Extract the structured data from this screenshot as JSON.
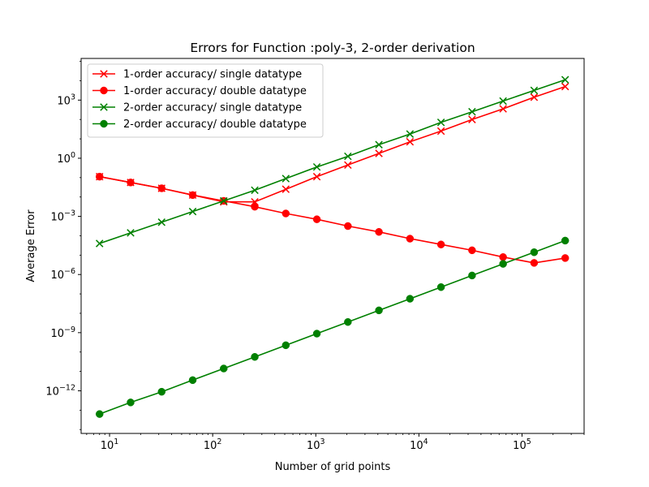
{
  "chart_data": {
    "type": "line",
    "title": "Errors for Function :poly-3, 2-order derivation",
    "xlabel": "Number of grid points",
    "ylabel": "Average Error",
    "xscale": "log",
    "yscale": "log",
    "xlim": [
      5.3,
      400000
    ],
    "ylim_exponent": [
      -14.2,
      5.15
    ],
    "x_ticks": [
      {
        "value": 10,
        "base": "10",
        "exp": "1"
      },
      {
        "value": 100,
        "base": "10",
        "exp": "2"
      },
      {
        "value": 1000,
        "base": "10",
        "exp": "3"
      },
      {
        "value": 10000,
        "base": "10",
        "exp": "4"
      },
      {
        "value": 100000,
        "base": "10",
        "exp": "5"
      }
    ],
    "y_ticks": [
      {
        "exp_value": -12,
        "base": "10",
        "exp": "−12"
      },
      {
        "exp_value": -9,
        "base": "10",
        "exp": "−9"
      },
      {
        "exp_value": -6,
        "base": "10",
        "exp": "−6"
      },
      {
        "exp_value": -3,
        "base": "10",
        "exp": "−3"
      },
      {
        "exp_value": 0,
        "base": "10",
        "exp": "0"
      },
      {
        "exp_value": 3,
        "base": "10",
        "exp": "3"
      }
    ],
    "grid": false,
    "legend_position": "top-left",
    "x": [
      8,
      16,
      32,
      64,
      128,
      256,
      512,
      1024,
      2048,
      4096,
      8192,
      16384,
      32768,
      65536,
      131072,
      262144
    ],
    "series": [
      {
        "name": "1-order accuracy/ single datatype",
        "color": "#ff0000",
        "marker": "x",
        "log10_values": [
          -0.95,
          -1.25,
          -1.55,
          -1.9,
          -2.25,
          -2.25,
          -1.6,
          -0.95,
          -0.35,
          0.25,
          0.85,
          1.4,
          2.0,
          2.55,
          3.15,
          3.7
        ]
      },
      {
        "name": "1-order accuracy/ double datatype",
        "color": "#ff0000",
        "marker": "o",
        "log10_values": [
          -0.95,
          -1.25,
          -1.55,
          -1.9,
          -2.2,
          -2.5,
          -2.85,
          -3.15,
          -3.5,
          -3.8,
          -4.15,
          -4.45,
          -4.75,
          -5.1,
          -5.4,
          -5.15
        ]
      },
      {
        "name": "2-order accuracy/ single datatype",
        "color": "#008000",
        "marker": "x",
        "log10_values": [
          -4.4,
          -3.85,
          -3.3,
          -2.75,
          -2.2,
          -1.65,
          -1.05,
          -0.45,
          0.1,
          0.7,
          1.25,
          1.85,
          2.4,
          2.95,
          3.5,
          4.05
        ]
      },
      {
        "name": "2-order accuracy/ double datatype",
        "color": "#008000",
        "marker": "o",
        "log10_values": [
          -13.2,
          -12.6,
          -12.05,
          -11.45,
          -10.85,
          -10.25,
          -9.65,
          -9.05,
          -8.45,
          -7.85,
          -7.25,
          -6.65,
          -6.05,
          -5.45,
          -4.85,
          -4.25
        ]
      }
    ]
  }
}
